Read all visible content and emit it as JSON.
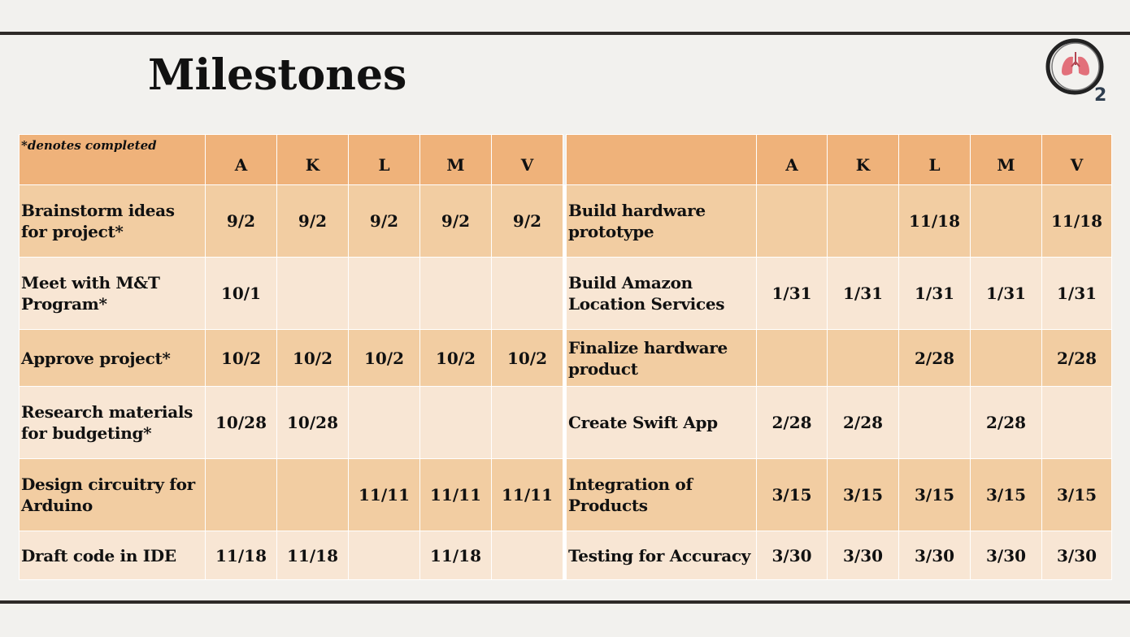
{
  "title": "Milestones",
  "note": "*denotes completed",
  "columns": [
    "A",
    "K",
    "L",
    "M",
    "V"
  ],
  "left_rows": [
    {
      "task": "Brainstorm ideas for project*",
      "dates": [
        "9/2",
        "9/2",
        "9/2",
        "9/2",
        "9/2"
      ]
    },
    {
      "task": "Meet with M&T Program*",
      "dates": [
        "10/1",
        "",
        "",
        "",
        ""
      ]
    },
    {
      "task": "Approve project*",
      "dates": [
        "10/2",
        "10/2",
        "10/2",
        "10/2",
        "10/2"
      ]
    },
    {
      "task": "Research materials for budgeting*",
      "dates": [
        "10/28",
        "10/28",
        "",
        "",
        ""
      ]
    },
    {
      "task": "Design circuitry for Arduino",
      "dates": [
        "",
        "",
        "11/11",
        "11/11",
        "11/11"
      ]
    },
    {
      "task": "Draft code in IDE",
      "dates": [
        "11/18",
        "11/18",
        "",
        "11/18",
        ""
      ]
    }
  ],
  "right_rows": [
    {
      "task": "Build hardware prototype",
      "dates": [
        "",
        "",
        "11/18",
        "",
        "11/18"
      ]
    },
    {
      "task": "Build Amazon Location Services",
      "dates": [
        "1/31",
        "1/31",
        "1/31",
        "1/31",
        "1/31"
      ]
    },
    {
      "task": "Finalize hardware product",
      "dates": [
        "",
        "",
        "2/28",
        "",
        "2/28"
      ]
    },
    {
      "task": "Create Swift App",
      "dates": [
        "2/28",
        "2/28",
        "",
        "2/28",
        ""
      ]
    },
    {
      "task": "Integration of Products",
      "dates": [
        "3/15",
        "3/15",
        "3/15",
        "3/15",
        "3/15"
      ]
    },
    {
      "task": "Testing for Accuracy",
      "dates": [
        "3/30",
        "3/30",
        "3/30",
        "3/30",
        "3/30"
      ]
    }
  ],
  "logo": {
    "icon": "lungs-o2-icon",
    "text": "2"
  },
  "colors": {
    "header": "#efb27a",
    "row_dark": "#f2cda2",
    "row_light": "#f8e6d4",
    "rule": "#2e2a28",
    "background": "#f2f1ee"
  }
}
